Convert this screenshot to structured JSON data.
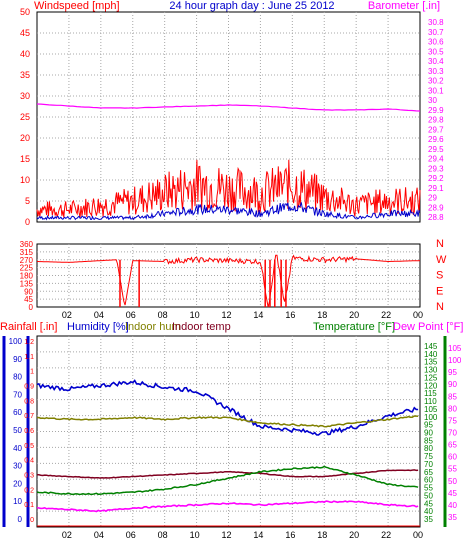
{
  "title": "24 hour graph day : June 25 2012",
  "colors": {
    "wind": "#ff0000",
    "gust": "#ff0000",
    "wind_avg": "#0000cc",
    "barometer": "#ff00ff",
    "wind_dir": "#ff0000",
    "rain": "#ff0000",
    "humidity": "#0000cc",
    "indoor_hum": "#808000",
    "indoor_temp": "#800020",
    "temperature": "#008000",
    "dew_point": "#ff00ff",
    "grid": "#a8a8a8",
    "frame": "#000000"
  },
  "x_ticks": [
    "02",
    "04",
    "06",
    "08",
    "10",
    "12",
    "14",
    "16",
    "18",
    "20",
    "22",
    "00"
  ],
  "chart_data": [
    {
      "type": "line",
      "name": "wind-barometer",
      "ylabel_left": "Windspeed [mph]",
      "ylabel_right": "Barometer [.in]",
      "y_left_ticks": [
        "0",
        "5",
        "10",
        "15",
        "20",
        "25",
        "30",
        "35",
        "40",
        "45",
        "50"
      ],
      "y_right_ticks": [
        "28.8",
        "28.9",
        "29",
        "29.1",
        "29.2",
        "29.3",
        "29.4",
        "29.5",
        "29.6",
        "29.7",
        "29.8",
        "29.9",
        "30",
        "30.1",
        "30.2",
        "30.3",
        "30.4",
        "30.5",
        "30.6",
        "30.7",
        "30.8"
      ],
      "ylim_left": [
        0,
        50
      ],
      "ylim_right": [
        28.75,
        30.85
      ],
      "x": [
        0,
        2,
        4,
        6,
        8,
        10,
        12,
        14,
        16,
        18,
        20,
        22,
        24
      ],
      "series": [
        {
          "key": "gust",
          "values": [
            3,
            3,
            4,
            5,
            7,
            9,
            8,
            7,
            9,
            6,
            4,
            5,
            5
          ]
        },
        {
          "key": "wind_avg",
          "values": [
            1,
            1,
            1,
            1,
            2,
            3,
            3,
            2,
            4,
            2,
            1,
            2,
            2
          ]
        },
        {
          "key": "barometer",
          "values": [
            29.93,
            29.91,
            29.89,
            29.89,
            29.9,
            29.91,
            29.92,
            29.91,
            29.89,
            29.87,
            29.87,
            29.88,
            29.86
          ]
        }
      ]
    },
    {
      "type": "scatter",
      "name": "wind-direction",
      "y_left_ticks": [
        "0",
        "45",
        "90",
        "135",
        "180",
        "225",
        "270",
        "315",
        "360"
      ],
      "y_right_ticks": [
        "N",
        "E",
        "S",
        "W",
        "N"
      ],
      "ylim": [
        0,
        360
      ],
      "x": [
        0,
        2,
        4,
        5,
        5.5,
        6,
        8,
        10,
        12,
        14,
        14.5,
        15,
        15.5,
        16,
        18,
        20,
        22,
        24
      ],
      "values": [
        260,
        255,
        265,
        270,
        0,
        265,
        260,
        270,
        265,
        260,
        0,
        320,
        10,
        280,
        270,
        275,
        260,
        265
      ]
    },
    {
      "type": "line",
      "name": "temperature-humidity",
      "labels": [
        "Rainfall [.in]",
        "Humidity [%]",
        "Indoor hum",
        "Indoor temp",
        "Temperature [°F]",
        "Dew Point [°F]"
      ],
      "y_rain_ticks": [
        "0",
        "0.1",
        "0.2",
        "0.3",
        "0.4",
        "0.5",
        "0.6",
        "0.7",
        "0.8",
        "0.9",
        "1",
        "1.1",
        "1.2"
      ],
      "y_hum_ticks": [
        "0",
        "10",
        "20",
        "30",
        "40",
        "50",
        "60",
        "70",
        "80",
        "90",
        "100"
      ],
      "y_temp_ticks": [
        "35",
        "40",
        "45",
        "50",
        "55",
        "60",
        "65",
        "70",
        "75",
        "80",
        "85",
        "90",
        "95",
        "100",
        "105",
        "110",
        "115",
        "120",
        "125",
        "130",
        "135",
        "140",
        "145"
      ],
      "y_dew_ticks": [
        "35",
        "40",
        "45",
        "50",
        "55",
        "60",
        "65",
        "70",
        "75",
        "80",
        "85",
        "90",
        "95",
        "100",
        "105"
      ],
      "x": [
        0,
        2,
        4,
        6,
        8,
        10,
        12,
        14,
        16,
        18,
        20,
        22,
        24
      ],
      "series": [
        {
          "key": "rain",
          "values": [
            0,
            0,
            0,
            0,
            0,
            0,
            0,
            0,
            0,
            0,
            0,
            0,
            0
          ]
        },
        {
          "key": "humidity",
          "values": [
            75,
            73,
            75,
            77,
            74,
            72,
            62,
            52,
            50,
            48,
            52,
            58,
            62
          ]
        },
        {
          "key": "indoor_hum",
          "values": [
            57,
            56,
            56,
            57,
            56,
            57,
            57,
            54,
            53,
            52,
            54,
            56,
            58
          ]
        },
        {
          "key": "indoor_temp",
          "values": [
            63,
            62,
            61,
            62,
            63,
            64,
            65,
            64,
            62,
            62,
            64,
            66,
            66
          ]
        },
        {
          "key": "temperature",
          "values": [
            52,
            51,
            51,
            52,
            54,
            57,
            61,
            65,
            67,
            68,
            63,
            57,
            55
          ]
        },
        {
          "key": "dew_point",
          "values": [
            42,
            41,
            40,
            42,
            43,
            44,
            45,
            44,
            45,
            46,
            46,
            44,
            43
          ]
        }
      ]
    }
  ]
}
